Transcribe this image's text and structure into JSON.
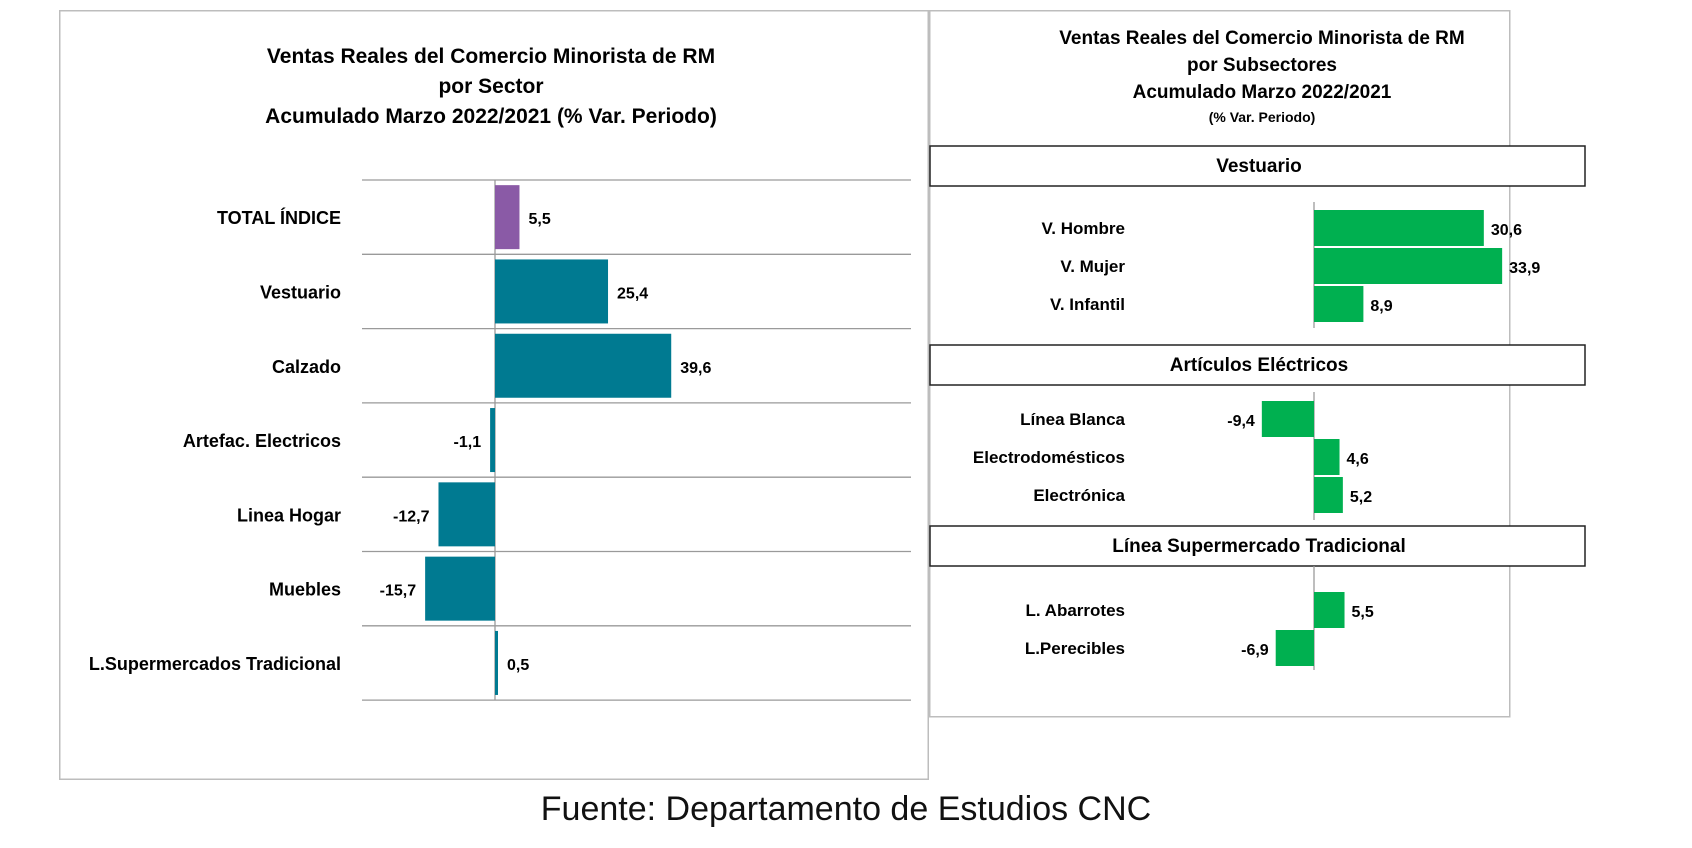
{
  "chart_data": [
    {
      "type": "bar",
      "orientation": "horizontal",
      "title": [
        "Ventas Reales del Comercio Minorista de RM",
        "por Sector",
        "Acumulado Marzo 2022/2021 (% Var. Periodo)"
      ],
      "categories": [
        "TOTAL ÍNDICE",
        "Vestuario",
        "Calzado",
        "Artefac. Electricos",
        "Linea Hogar",
        "Muebles",
        "L.Supermercados Tradicional"
      ],
      "values": [
        5.5,
        25.4,
        39.6,
        -1.1,
        -12.7,
        -15.7,
        0.5
      ],
      "value_labels": [
        "5,5",
        "25,4",
        "39,6",
        "-1,1",
        "-12,7",
        "-15,7",
        "0,5"
      ],
      "colors": [
        "#8a5aa6",
        "#007a91",
        "#007a91",
        "#007a91",
        "#007a91",
        "#007a91",
        "#007a91"
      ],
      "grid": "horizontal separators",
      "legend": "none"
    },
    {
      "type": "bar",
      "orientation": "horizontal",
      "title": [
        "Ventas Reales del Comercio Minorista de RM",
        "por Subsectores",
        "Acumulado Marzo 2022/2021"
      ],
      "subtitle": "(% Var. Periodo)",
      "color": "#00b050",
      "legend": "none",
      "groups": [
        {
          "name": "Vestuario",
          "categories": [
            "V. Hombre",
            "V. Mujer",
            "V. Infantil"
          ],
          "values": [
            30.6,
            33.9,
            8.9
          ],
          "value_labels": [
            "30,6",
            "33,9",
            "8,9"
          ]
        },
        {
          "name": "Artículos Eléctricos",
          "categories": [
            "Línea Blanca",
            "Electrodomésticos",
            "Electrónica"
          ],
          "values": [
            -9.4,
            4.6,
            5.2
          ],
          "value_labels": [
            "-9,4",
            "4,6",
            "5,2"
          ]
        },
        {
          "name": "Línea  Supermercado Tradicional",
          "categories": [
            "L. Abarrotes",
            "L.Perecibles"
          ],
          "values": [
            5.5,
            -6.9
          ],
          "value_labels": [
            "5,5",
            "-6,9"
          ]
        }
      ]
    }
  ],
  "source": "Fuente: Departamento de Estudios CNC"
}
